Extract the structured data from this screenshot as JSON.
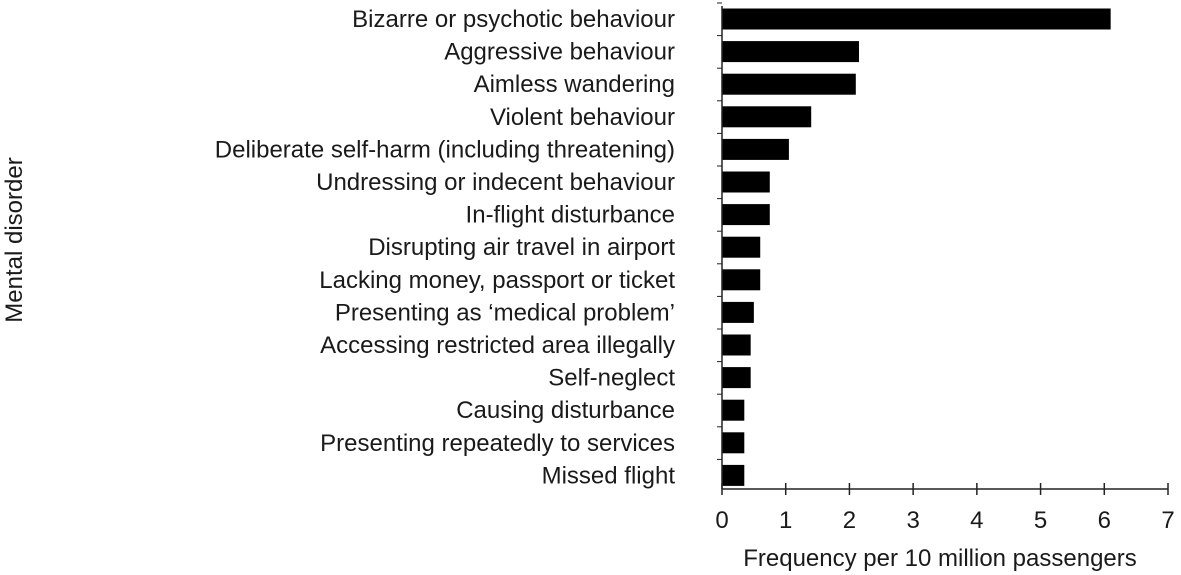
{
  "chart_data": {
    "type": "bar",
    "orientation": "horizontal",
    "title": "",
    "xlabel": "Frequency per 10 million passengers",
    "ylabel": "Mental disorder",
    "xlim": [
      0,
      7
    ],
    "xticks": [
      "0",
      "1",
      "2",
      "3",
      "4",
      "5",
      "6",
      "7"
    ],
    "grid": false,
    "bar_color": "#000000",
    "categories": [
      "Bizarre or psychotic behaviour",
      "Aggressive behaviour",
      "Aimless wandering",
      "Violent behaviour",
      "Deliberate self-harm (including threatening)",
      "Undressing or indecent behaviour",
      "In-flight disturbance",
      "Disrupting air travel in airport",
      "Lacking money, passport or ticket",
      "Presenting as ‘medical problem’",
      "Accessing restricted area illegally",
      "Self-neglect",
      "Causing disturbance",
      "Presenting repeatedly to services",
      "Missed flight"
    ],
    "values": [
      6.1,
      2.15,
      2.1,
      1.4,
      1.05,
      0.75,
      0.75,
      0.6,
      0.6,
      0.5,
      0.45,
      0.45,
      0.35,
      0.35,
      0.35
    ]
  }
}
